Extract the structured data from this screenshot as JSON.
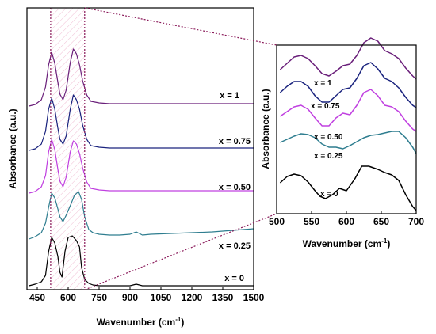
{
  "chart_data": [
    {
      "type": "line",
      "xlabel_main": "Wavenumber (cm",
      "xlabel_sup": "-1",
      "xlabel_end": ")",
      "ylabel": "Absorbance (a.u.)",
      "xlim": [
        400,
        1500
      ],
      "xticks": [
        "450",
        "600",
        "750",
        "900",
        "1050",
        "1200",
        "1350",
        "1500"
      ],
      "xtick_values": [
        450,
        600,
        750,
        900,
        1050,
        1200,
        1350,
        1500
      ],
      "highlight_range": [
        515,
        680
      ],
      "series": [
        {
          "name": "x = 0",
          "color": "#000000",
          "offset": 0,
          "x": [
            410,
            440,
            470,
            490,
            505,
            520,
            535,
            550,
            560,
            570,
            585,
            600,
            620,
            640,
            655,
            665,
            680,
            700,
            720,
            750,
            800,
            900,
            930,
            960,
            1000,
            1100,
            1200,
            1300,
            1400,
            1500
          ],
          "y": [
            1,
            3,
            6,
            14,
            44,
            62,
            55,
            38,
            18,
            12,
            45,
            62,
            64,
            58,
            50,
            24,
            9,
            4,
            2,
            1,
            1,
            1,
            3,
            1,
            1,
            1,
            1,
            1,
            1,
            1
          ]
        },
        {
          "name": "x = 0.25",
          "color": "#2e7d8f",
          "offset": 60,
          "x": [
            410,
            440,
            470,
            490,
            505,
            520,
            535,
            550,
            560,
            575,
            590,
            610,
            630,
            650,
            665,
            680,
            700,
            720,
            750,
            800,
            850,
            900,
            930,
            960,
            1000,
            1100,
            1200,
            1300,
            1400,
            1500
          ],
          "y": [
            0,
            3,
            8,
            20,
            40,
            58,
            52,
            38,
            28,
            22,
            30,
            42,
            55,
            60,
            50,
            28,
            12,
            8,
            6,
            5,
            5,
            6,
            9,
            5,
            6,
            7,
            8,
            9,
            11,
            13
          ]
        },
        {
          "name": "x = 0.50",
          "color": "#c040e0",
          "offset": 118,
          "x": [
            410,
            440,
            470,
            490,
            505,
            520,
            535,
            550,
            560,
            575,
            590,
            610,
            625,
            640,
            655,
            670,
            690,
            710,
            750,
            800,
            900,
            1000,
            1100,
            1200,
            1300,
            1400,
            1500
          ],
          "y": [
            0,
            2,
            8,
            22,
            52,
            68,
            55,
            30,
            15,
            8,
            20,
            52,
            66,
            62,
            50,
            32,
            14,
            6,
            4,
            3,
            3,
            3,
            3,
            3,
            3,
            3,
            3
          ]
        },
        {
          "name": "x = 0.75",
          "color": "#1a237e",
          "offset": 172,
          "x": [
            410,
            440,
            470,
            490,
            505,
            520,
            535,
            550,
            560,
            575,
            590,
            610,
            625,
            640,
            655,
            670,
            690,
            710,
            750,
            800,
            900,
            1000,
            1100,
            1200,
            1300,
            1400,
            1500
          ],
          "y": [
            0,
            2,
            8,
            24,
            52,
            66,
            52,
            28,
            14,
            8,
            18,
            52,
            70,
            64,
            52,
            32,
            14,
            6,
            4,
            3,
            3,
            3,
            3,
            3,
            3,
            3,
            3
          ]
        },
        {
          "name": "x = 1",
          "color": "#6a1f7a",
          "offset": 228,
          "x": [
            410,
            440,
            470,
            490,
            505,
            520,
            535,
            550,
            560,
            575,
            590,
            610,
            625,
            640,
            655,
            670,
            690,
            710,
            750,
            800,
            900,
            1000,
            1100,
            1200,
            1300,
            1400,
            1500
          ],
          "y": [
            0,
            2,
            8,
            24,
            52,
            68,
            54,
            30,
            15,
            8,
            20,
            55,
            72,
            66,
            52,
            32,
            14,
            6,
            4,
            3,
            3,
            3,
            3,
            3,
            3,
            3,
            3
          ]
        }
      ]
    },
    {
      "type": "line",
      "xlabel_main": "Wavenumber (cm",
      "xlabel_sup": "-1",
      "xlabel_end": ")",
      "ylabel": "Absorbance (a.u.)",
      "xlim": [
        500,
        700
      ],
      "xticks": [
        "500",
        "550",
        "600",
        "650",
        "700"
      ],
      "xtick_values": [
        500,
        550,
        600,
        650,
        700
      ],
      "series": [
        {
          "name": "x = 0",
          "color": "#000000",
          "offset": 0,
          "x": [
            505,
            515,
            525,
            535,
            545,
            555,
            562,
            570,
            580,
            590,
            600,
            612,
            622,
            632,
            645,
            655,
            665,
            675,
            685,
            695,
            700
          ],
          "y": [
            35,
            43,
            46,
            44,
            36,
            25,
            18,
            15,
            20,
            28,
            25,
            40,
            56,
            56,
            52,
            48,
            45,
            38,
            20,
            5,
            0
          ]
        },
        {
          "name": "x = 0.25",
          "color": "#2e7d8f",
          "offset": 62,
          "x": [
            505,
            515,
            525,
            535,
            545,
            555,
            565,
            575,
            585,
            595,
            605,
            615,
            625,
            635,
            645,
            655,
            665,
            675,
            685,
            695,
            700
          ],
          "y": [
            24,
            28,
            32,
            35,
            34,
            30,
            22,
            18,
            18,
            16,
            20,
            25,
            30,
            33,
            34,
            36,
            38,
            38,
            30,
            18,
            10
          ]
        },
        {
          "name": "x = 0.50",
          "color": "#c040e0",
          "offset": 95,
          "x": [
            505,
            515,
            525,
            535,
            545,
            555,
            565,
            575,
            585,
            595,
            605,
            615,
            625,
            635,
            645,
            655,
            665,
            675,
            685,
            695,
            700
          ],
          "y": [
            24,
            30,
            36,
            38,
            33,
            22,
            12,
            12,
            22,
            28,
            26,
            38,
            54,
            58,
            50,
            38,
            36,
            30,
            18,
            8,
            5
          ]
        },
        {
          "name": "x = 0.75",
          "color": "#1a237e",
          "offset": 127,
          "x": [
            505,
            515,
            525,
            535,
            545,
            555,
            565,
            575,
            585,
            595,
            605,
            615,
            625,
            635,
            645,
            655,
            665,
            675,
            685,
            695,
            700
          ],
          "y": [
            22,
            30,
            36,
            36,
            30,
            18,
            10,
            10,
            18,
            26,
            28,
            40,
            56,
            60,
            52,
            40,
            36,
            28,
            16,
            6,
            3
          ]
        },
        {
          "name": "x = 1",
          "color": "#6a1f7a",
          "offset": 158,
          "x": [
            505,
            515,
            525,
            535,
            545,
            555,
            565,
            575,
            585,
            595,
            605,
            615,
            625,
            635,
            645,
            655,
            665,
            675,
            685,
            695,
            700
          ],
          "y": [
            20,
            28,
            36,
            38,
            34,
            25,
            15,
            12,
            18,
            25,
            27,
            38,
            54,
            60,
            56,
            44,
            40,
            34,
            22,
            12,
            8
          ]
        }
      ]
    }
  ]
}
